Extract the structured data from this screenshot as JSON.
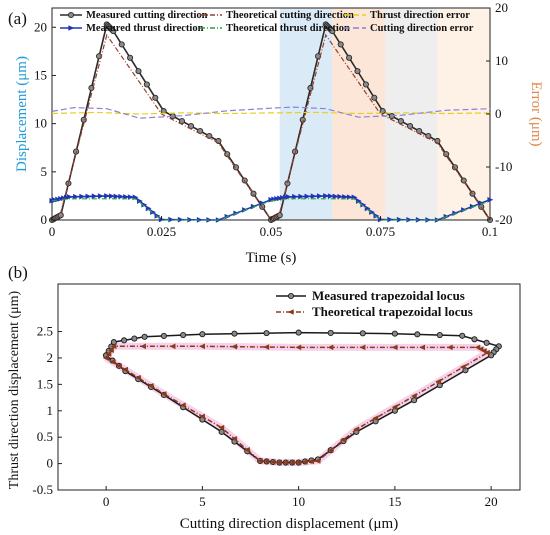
{
  "panels": {
    "a": "(a)",
    "b": "(b)"
  },
  "chart_data": [
    {
      "type": "line",
      "title": "",
      "xlabel": "Time (s)",
      "ylabel": "Displacement (μm)",
      "y2label": "Error (μm)",
      "xlim": [
        0,
        0.1
      ],
      "ylim": [
        0,
        22
      ],
      "y2lim": [
        -20,
        20
      ],
      "xticks": [
        "0",
        "0.025",
        "0.05",
        "0.075",
        "0.1"
      ],
      "xtick_values": [
        0,
        0.025,
        0.05,
        0.075,
        0.1
      ],
      "yticks": [
        0,
        5,
        10,
        15,
        20
      ],
      "y2ticks": [
        -20,
        -10,
        0,
        10,
        20
      ],
      "shaded_regions": [
        {
          "x": [
            0.052,
            0.064
          ],
          "color": "#d6e9f6"
        },
        {
          "x": [
            0.064,
            0.076
          ],
          "color": "#fbe3d4"
        },
        {
          "x": [
            0.076,
            0.088
          ],
          "color": "#ececec"
        },
        {
          "x": [
            0.088,
            0.1
          ],
          "color": "#fdf1e2"
        }
      ],
      "series": [
        {
          "name": "Measured cutting direction",
          "axis": "left",
          "color": "#2b2b2b",
          "marker": "circle",
          "x": [
            0,
            0.002,
            0.0125,
            0.014,
            0.0255,
            0.038,
            0.05,
            0.052,
            0.0625,
            0.064,
            0.0755,
            0.088,
            0.1
          ],
          "y": [
            0,
            0.5,
            20.3,
            19.6,
            11.3,
            8.2,
            0,
            0.5,
            20.3,
            19.6,
            11.3,
            8.2,
            0
          ]
        },
        {
          "name": "Theoretical cutting direction",
          "axis": "left",
          "color": "#9b3f2a",
          "marker": "none",
          "dash": "5,2,1,2",
          "x": [
            0,
            0.002,
            0.0125,
            0.025,
            0.038,
            0.05,
            0.052,
            0.0625,
            0.075,
            0.088,
            0.1
          ],
          "y": [
            0,
            0.8,
            19.2,
            11.0,
            8.0,
            0,
            0.8,
            19.2,
            11.0,
            8.0,
            0
          ]
        },
        {
          "name": "Measured thrust direction",
          "axis": "left",
          "color": "#2233b8",
          "marker": "triangle",
          "x": [
            0,
            0.004,
            0.0125,
            0.019,
            0.025,
            0.038,
            0.05,
            0.054,
            0.0625,
            0.069,
            0.075,
            0.088,
            0.1
          ],
          "y": [
            2.0,
            2.4,
            2.5,
            2.35,
            0.05,
            0,
            2.1,
            2.4,
            2.5,
            2.35,
            0.05,
            0,
            2.1
          ]
        },
        {
          "name": "Theoretical thrust direction",
          "axis": "left",
          "color": "#22a83a",
          "marker": "none",
          "dash": "5,2,1,2",
          "x": [
            0,
            0.004,
            0.0125,
            0.019,
            0.025,
            0.038,
            0.05,
            0.054,
            0.0625,
            0.069,
            0.075,
            0.088,
            0.1
          ],
          "y": [
            2.0,
            2.2,
            2.2,
            2.2,
            0,
            0,
            2.0,
            2.2,
            2.2,
            2.2,
            0,
            0,
            2.0
          ]
        },
        {
          "name": "Thrust direction error",
          "axis": "right",
          "color": "#e3d21f",
          "marker": "none",
          "dash": "6,3",
          "x": [
            0,
            0.01,
            0.02,
            0.03,
            0.04,
            0.05,
            0.06,
            0.07,
            0.08,
            0.09,
            0.1
          ],
          "y": [
            0.1,
            0.3,
            0.0,
            0.2,
            0.1,
            0.2,
            0.3,
            0.1,
            0.2,
            0.1,
            0.2
          ]
        },
        {
          "name": "Cutting direction error",
          "axis": "right",
          "color": "#8f7fdc",
          "marker": "none",
          "dash": "6,3",
          "x": [
            0,
            0.005,
            0.0125,
            0.02,
            0.03,
            0.04,
            0.05,
            0.055,
            0.0625,
            0.07,
            0.08,
            0.09,
            0.1
          ],
          "y": [
            0.5,
            1.2,
            1.0,
            -0.8,
            -0.3,
            0.6,
            1.1,
            1.3,
            1.0,
            -0.6,
            -0.2,
            0.7,
            1.0
          ]
        }
      ]
    },
    {
      "type": "line",
      "title": "",
      "xlabel": "Cutting direction displacement (μm)",
      "ylabel": "Thrust direction displacement (μm)",
      "xlim": [
        -2.5,
        21.5
      ],
      "ylim": [
        -0.5,
        3.4
      ],
      "xticks": [
        0,
        5,
        10,
        15,
        20
      ],
      "yticks": [
        -0.5,
        0,
        0.5,
        1,
        1.5,
        2,
        2.5
      ],
      "legend_position": "top-right",
      "series": [
        {
          "name": "Measured trapezoidal locus",
          "color": "#1a1a1a",
          "marker": "circle",
          "x": [
            0,
            0.4,
            2,
            5,
            10,
            15,
            18.5,
            20.4,
            20,
            16,
            13,
            11,
            10,
            9,
            8,
            6,
            3,
            1,
            0
          ],
          "y": [
            2.05,
            2.3,
            2.4,
            2.45,
            2.48,
            2.46,
            2.42,
            2.22,
            2.05,
            1.2,
            0.6,
            0.08,
            0.02,
            0.02,
            0.05,
            0.6,
            1.3,
            1.75,
            2.05
          ]
        },
        {
          "name": "Theoretical trapezoidal locus",
          "color": "#8b3a1a",
          "marker": "triangle-left",
          "dash": "5,2,1,2",
          "x": [
            0,
            0.4,
            5,
            10,
            15,
            19.3,
            19.8,
            16,
            13,
            11,
            10,
            9,
            8,
            6,
            3,
            1,
            0
          ],
          "y": [
            2.0,
            2.22,
            2.22,
            2.2,
            2.2,
            2.2,
            2.1,
            1.28,
            0.65,
            0.05,
            0.02,
            0.02,
            0.05,
            0.68,
            1.32,
            1.78,
            2.0
          ]
        }
      ]
    }
  ]
}
